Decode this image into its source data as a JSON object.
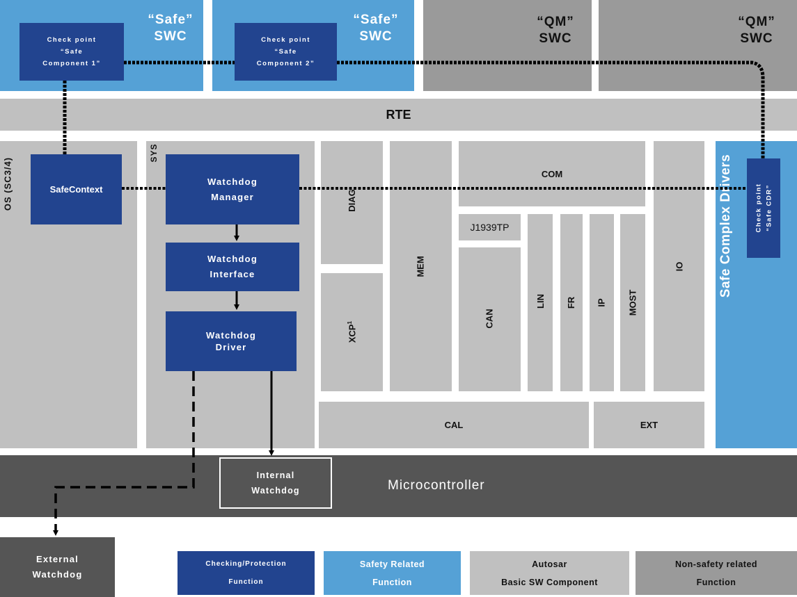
{
  "swc": [
    {
      "title_line1": "“Safe”",
      "title_line2": "SWC",
      "checkpoint_lines": [
        "Check point",
        "“Safe",
        "Component 1”"
      ]
    },
    {
      "title_line1": "“Safe”",
      "title_line2": "SWC",
      "checkpoint_lines": [
        "Check point",
        "“Safe",
        "Component 2”"
      ]
    },
    {
      "title_line1": "“QM”",
      "title_line2": "SWC"
    },
    {
      "title_line1": "“QM”",
      "title_line2": "SWC"
    }
  ],
  "rte": "RTE",
  "os": {
    "label": "OS (SC3/4)",
    "safecontext": "SafeContext"
  },
  "sys": {
    "label": "SYS",
    "wd_manager": [
      "Watchdog",
      "Manager"
    ],
    "wd_interface": [
      "Watchdog",
      "Interface"
    ],
    "wd_driver": [
      "Watchdog",
      "Driver"
    ]
  },
  "modules": {
    "diag": "DIAG",
    "xcp": "XCP",
    "xcp_sup": "1",
    "mem": "MEM",
    "com": "COM",
    "j1939tp": "J1939TP",
    "can": "CAN",
    "lin": "LIN",
    "fr": "FR",
    "ip": "IP",
    "most": "MOST",
    "io": "IO",
    "cal": "CAL",
    "ext": "EXT"
  },
  "safe_cdd": {
    "label": "Safe Complex Drivers",
    "checkpoint_lines": [
      "Check point",
      "“Safe CDR”"
    ]
  },
  "microcontroller": {
    "label": "Microcontroller",
    "internal_wd": [
      "Internal",
      "Watchdog"
    ]
  },
  "external_wd": [
    "External",
    "Watchdog"
  ],
  "legend": [
    {
      "lines": [
        "Checking/Protection",
        "Function"
      ],
      "color": "#22448f"
    },
    {
      "lines": [
        "Safety Related",
        "Function"
      ],
      "color": "#55a1d6"
    },
    {
      "lines": [
        "Autosar",
        "Basic SW Component"
      ],
      "color": "#c0c0c0"
    },
    {
      "lines": [
        "Non-safety related",
        "Function"
      ],
      "color": "#9a9a9a"
    }
  ]
}
